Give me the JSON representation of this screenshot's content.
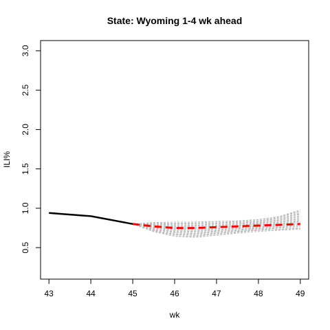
{
  "chart_data": {
    "type": "line",
    "title": "State: Wyoming 1-4 wk ahead",
    "xlabel": "wk",
    "ylabel": "ILI%",
    "xlim": [
      42.8,
      49.2
    ],
    "ylim": [
      0.1,
      3.13
    ],
    "x_ticks": [
      43,
      44,
      45,
      46,
      47,
      48,
      49
    ],
    "y_ticks": [
      0.5,
      1.0,
      1.5,
      2.0,
      2.5,
      3.0
    ],
    "y_tick_labels": [
      "0.5",
      "1.0",
      "1.5",
      "2.0",
      "2.5",
      "3.0"
    ],
    "grid": false,
    "legend": "none",
    "observed": {
      "color": "#000000",
      "x": [
        43,
        44,
        45
      ],
      "y": [
        0.94,
        0.9,
        0.8
      ]
    },
    "forecast_mean": {
      "color": "#ff0000",
      "x": [
        45,
        45.5,
        46,
        46.5,
        47,
        47.5,
        48,
        48.5,
        49
      ],
      "y": [
        0.8,
        0.77,
        0.75,
        0.75,
        0.76,
        0.77,
        0.78,
        0.79,
        0.8
      ]
    },
    "simulation_band": {
      "color": "#bbbbbb",
      "x": [
        45,
        45.5,
        46,
        46.5,
        47,
        47.5,
        48,
        48.5,
        49
      ],
      "lower": [
        0.8,
        0.7,
        0.64,
        0.63,
        0.66,
        0.69,
        0.71,
        0.72,
        0.73
      ],
      "upper": [
        0.8,
        0.82,
        0.82,
        0.82,
        0.83,
        0.84,
        0.86,
        0.9,
        0.98
      ],
      "count": 30
    }
  }
}
